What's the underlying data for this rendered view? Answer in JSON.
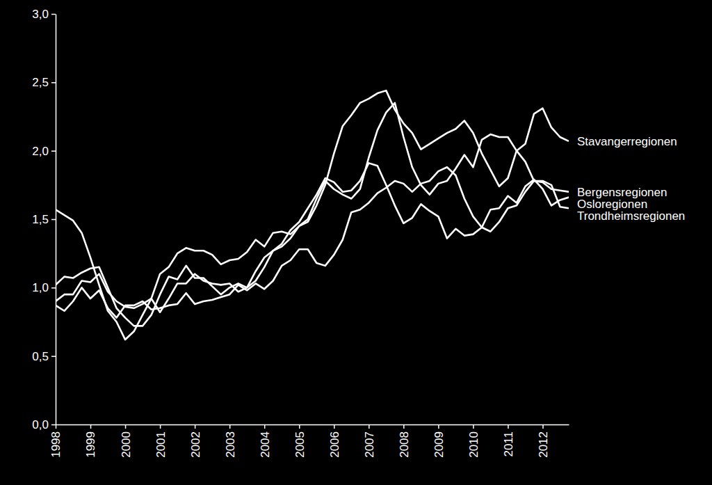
{
  "chart_data": {
    "type": "line",
    "x": [
      1998,
      1998.25,
      1998.5,
      1998.75,
      1999,
      1999.25,
      1999.5,
      1999.75,
      2000,
      2000.25,
      2000.5,
      2000.75,
      2001,
      2001.25,
      2001.5,
      2001.75,
      2002,
      2002.25,
      2002.5,
      2002.75,
      2003,
      2003.25,
      2003.5,
      2003.75,
      2004,
      2004.25,
      2004.5,
      2004.75,
      2005,
      2005.25,
      2005.5,
      2005.75,
      2006,
      2006.25,
      2006.5,
      2006.75,
      2007,
      2007.25,
      2007.5,
      2007.75,
      2008,
      2008.25,
      2008.5,
      2008.75,
      2009,
      2009.25,
      2009.5,
      2009.75,
      2010,
      2010.25,
      2010.5,
      2010.75,
      2011,
      2011.25,
      2011.5,
      2011.75,
      2012,
      2012.25,
      2012.5,
      2012.75
    ],
    "series": [
      {
        "name": "Stavangerregionen",
        "color": "#ffffff",
        "values": [
          1.57,
          1.53,
          1.49,
          1.4,
          1.22,
          1.02,
          0.83,
          0.75,
          0.62,
          0.68,
          0.8,
          0.92,
          1.1,
          1.15,
          1.25,
          1.29,
          1.27,
          1.27,
          1.24,
          1.17,
          1.2,
          1.21,
          1.26,
          1.35,
          1.3,
          1.4,
          1.41,
          1.39,
          1.45,
          1.48,
          1.6,
          1.75,
          1.98,
          2.18,
          2.26,
          2.35,
          2.38,
          2.42,
          2.44,
          2.3,
          2.2,
          2.13,
          2.01,
          2.05,
          2.09,
          2.13,
          2.16,
          2.22,
          2.13,
          1.98,
          1.86,
          1.74,
          1.8,
          2.0,
          2.05,
          2.27,
          2.31,
          2.17,
          2.1,
          2.07
        ]
      },
      {
        "name": "Bergensregionen",
        "color": "#ffffff",
        "values": [
          1.02,
          1.08,
          1.07,
          1.11,
          1.14,
          1.15,
          1.0,
          0.85,
          0.78,
          0.72,
          0.72,
          0.8,
          0.95,
          1.08,
          1.06,
          1.16,
          1.07,
          1.07,
          1.01,
          0.95,
          1.0,
          1.03,
          1.0,
          1.05,
          1.15,
          1.27,
          1.3,
          1.36,
          1.45,
          1.5,
          1.65,
          1.78,
          1.72,
          1.68,
          1.65,
          1.72,
          1.95,
          2.15,
          2.28,
          2.35,
          2.1,
          1.88,
          1.75,
          1.68,
          1.76,
          1.78,
          1.87,
          1.97,
          1.88,
          2.08,
          2.12,
          2.1,
          2.1,
          2.0,
          1.92,
          1.78,
          1.77,
          1.72,
          1.71,
          1.7
        ]
      },
      {
        "name": "Osloregionen",
        "color": "#ffffff",
        "values": [
          0.9,
          0.95,
          0.95,
          1.05,
          1.04,
          1.1,
          0.97,
          0.9,
          0.86,
          0.85,
          0.88,
          0.92,
          0.82,
          0.92,
          1.03,
          1.03,
          1.1,
          1.05,
          1.03,
          1.02,
          1.03,
          0.97,
          1.0,
          1.12,
          1.22,
          1.27,
          1.32,
          1.42,
          1.48,
          1.58,
          1.68,
          1.8,
          1.77,
          1.7,
          1.71,
          1.78,
          1.91,
          1.89,
          1.75,
          1.6,
          1.47,
          1.51,
          1.61,
          1.56,
          1.52,
          1.36,
          1.43,
          1.38,
          1.39,
          1.44,
          1.57,
          1.58,
          1.67,
          1.62,
          1.74,
          1.79,
          1.72,
          1.6,
          1.64,
          1.66
        ]
      },
      {
        "name": "Trondheimsregionen",
        "color": "#ffffff",
        "values": [
          0.87,
          0.83,
          0.9,
          1.0,
          0.92,
          0.98,
          0.85,
          0.78,
          0.87,
          0.87,
          0.9,
          0.84,
          0.85,
          0.87,
          0.88,
          0.96,
          0.88,
          0.9,
          0.91,
          0.93,
          0.95,
          1.02,
          0.98,
          1.03,
          0.99,
          1.05,
          1.16,
          1.2,
          1.28,
          1.28,
          1.18,
          1.16,
          1.24,
          1.35,
          1.55,
          1.57,
          1.62,
          1.69,
          1.73,
          1.78,
          1.76,
          1.7,
          1.76,
          1.78,
          1.85,
          1.88,
          1.82,
          1.65,
          1.52,
          1.44,
          1.41,
          1.48,
          1.58,
          1.6,
          1.7,
          1.78,
          1.78,
          1.75,
          1.59,
          1.58
        ]
      }
    ],
    "xlim": [
      1998,
      2012.75
    ],
    "xticks": [
      1998,
      1999,
      2000,
      2001,
      2002,
      2003,
      2004,
      2005,
      2006,
      2007,
      2008,
      2009,
      2010,
      2011,
      2012
    ],
    "ylim": [
      0,
      3
    ],
    "yticks": [
      {
        "value": 0,
        "label": "0,0"
      },
      {
        "value": 0.5,
        "label": "0,5"
      },
      {
        "value": 1,
        "label": "1,0"
      },
      {
        "value": 1.5,
        "label": "1,5"
      },
      {
        "value": 2,
        "label": "2,0"
      },
      {
        "value": 2.5,
        "label": "2,5"
      },
      {
        "value": 3,
        "label": "3,0"
      }
    ],
    "grid": false
  }
}
